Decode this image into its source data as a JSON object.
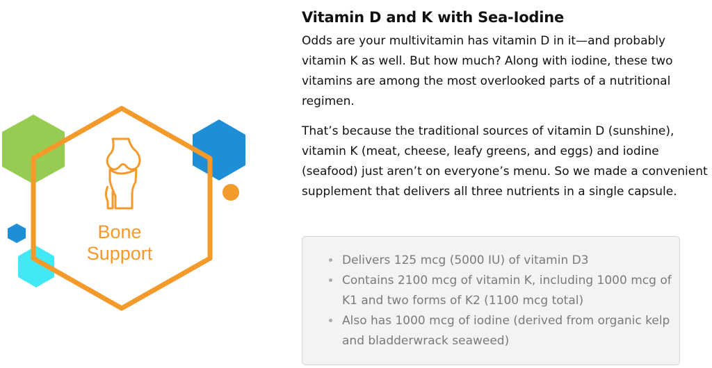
{
  "image": {
    "label_line1": "Bone",
    "label_line2": "Support",
    "icon": "knee-joint-icon",
    "colors": {
      "orange": "#f39a2b",
      "green": "#8cc63f",
      "blue": "#1e8fd6",
      "cyan": "#2ee6f2"
    }
  },
  "title": "Vitamin D and K with Sea-Iodine",
  "paragraphs": [
    "Odds are your multivitamin has vitamin D in it—and probably vitamin K as well. But how much? Along with iodine, these two vitamins are among the most overlooked parts of a nutritional regimen.",
    "That’s because the traditional sources of vitamin D (sunshine), vitamin K (meat, cheese, leafy greens, and eggs) and iodine (seafood) just aren’t on everyone’s menu. So we made a convenient supplement that delivers all three nutrients in a single capsule."
  ],
  "bullets": [
    "Delivers 125 mcg (5000 IU) of vitamin D3",
    "Contains 2100 mcg of vitamin K, including 1000 mcg of K1 and two forms of K2 (1100 mcg total)",
    "Also has 1000 mcg of iodine (derived from organic kelp and bladderwrack seaweed)"
  ]
}
